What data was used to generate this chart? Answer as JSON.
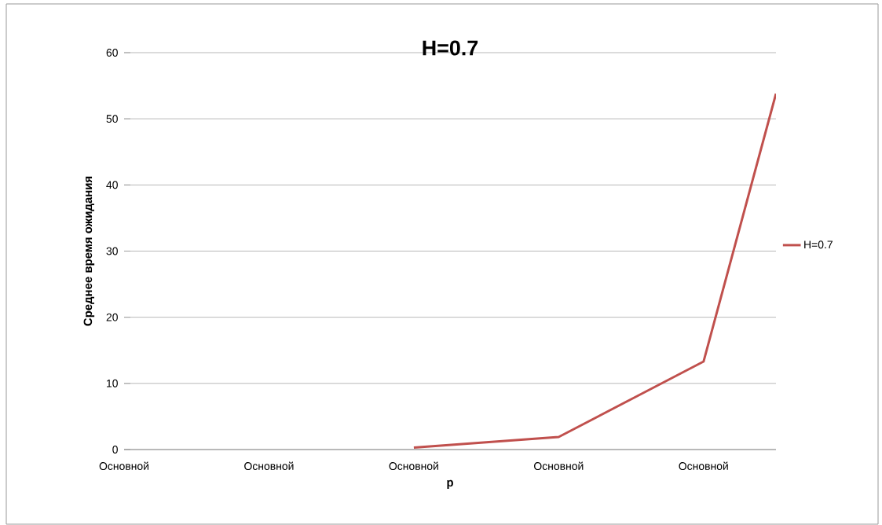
{
  "chart_data": {
    "type": "line",
    "title": "H=0.7",
    "xlabel": "p",
    "ylabel": "Среднее время ожидания",
    "categories": [
      "Основной",
      null,
      "Основной",
      null,
      "Основной",
      null,
      "Основной",
      null,
      "Основной",
      null
    ],
    "series": [
      {
        "name": "H=0.7",
        "color": "#c0504d",
        "values": [
          null,
          null,
          null,
          null,
          0.3,
          1.1,
          1.9,
          7.6,
          13.3,
          53.8
        ]
      }
    ],
    "ylim": [
      0,
      60
    ],
    "yticks": [
      0,
      10,
      20,
      30,
      40,
      50,
      60
    ],
    "grid": "y",
    "legend": "right"
  }
}
